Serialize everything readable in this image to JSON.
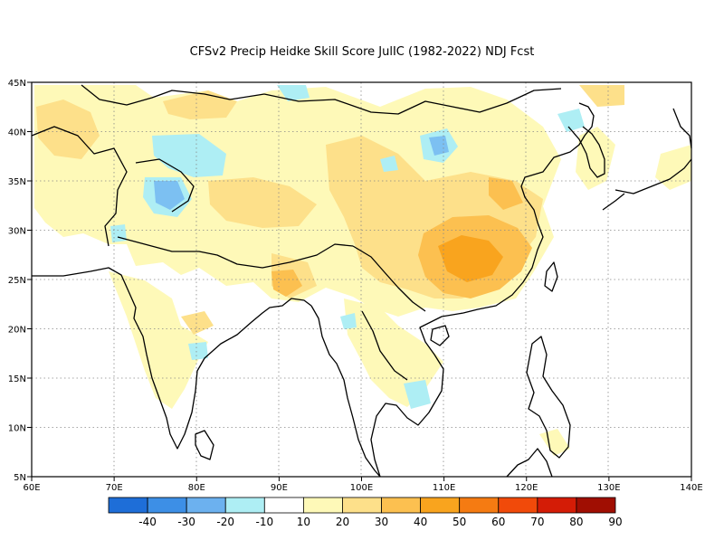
{
  "title": "CFSv2 Precip Heidke Skill Score JulIC (1982-2022) NDJ Fcst",
  "map": {
    "lon_range": [
      60,
      140
    ],
    "lat_range": [
      5,
      45
    ],
    "lon_ticks": [
      "60E",
      "70E",
      "80E",
      "90E",
      "100E",
      "110E",
      "120E",
      "130E",
      "140E"
    ],
    "lat_ticks": [
      "45N",
      "40N",
      "35N",
      "30N",
      "25N",
      "20N",
      "15N",
      "10N",
      "5N"
    ],
    "grid": "dotted",
    "colors": {
      "pale_yellow": "#fef9b8",
      "light_orange": "#fde08a",
      "orange": "#fcc050",
      "deep_orange": "#f9a41e",
      "light_cyan": "#aeeef4",
      "light_blue": "#7cc0f2",
      "coast": "#000000"
    }
  },
  "colorbar": {
    "labels": [
      "-40",
      "-30",
      "-20",
      "-10",
      "10",
      "20",
      "30",
      "40",
      "50",
      "60",
      "70",
      "80",
      "90"
    ],
    "colors": [
      "#1e6ed8",
      "#3d8fe6",
      "#6cb1ef",
      "#aeeef4",
      "#ffffff",
      "#fef9b8",
      "#fde08a",
      "#fcc050",
      "#f9a41e",
      "#f57b12",
      "#f14a0a",
      "#d41c06",
      "#a00e02"
    ]
  }
}
